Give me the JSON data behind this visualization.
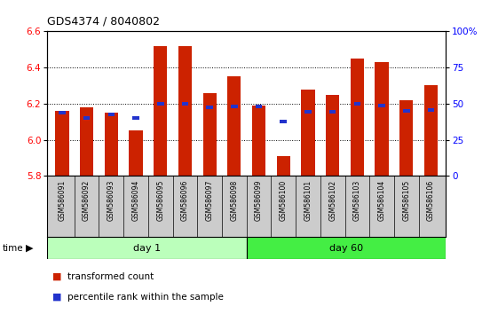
{
  "title": "GDS4374 / 8040802",
  "samples": [
    "GSM586091",
    "GSM586092",
    "GSM586093",
    "GSM586094",
    "GSM586095",
    "GSM586096",
    "GSM586097",
    "GSM586098",
    "GSM586099",
    "GSM586100",
    "GSM586101",
    "GSM586102",
    "GSM586103",
    "GSM586104",
    "GSM586105",
    "GSM586106"
  ],
  "red_values": [
    6.16,
    6.18,
    6.15,
    6.05,
    6.52,
    6.52,
    6.26,
    6.35,
    6.19,
    5.91,
    6.28,
    6.25,
    6.45,
    6.43,
    6.22,
    6.3
  ],
  "blue_values": [
    6.15,
    6.12,
    6.14,
    6.12,
    6.2,
    6.2,
    6.18,
    6.185,
    6.185,
    6.1,
    6.155,
    6.155,
    6.2,
    6.19,
    6.16,
    6.165
  ],
  "ylim_left": [
    5.8,
    6.6
  ],
  "ylim_right": [
    0,
    100
  ],
  "ybase": 5.8,
  "yticks_left": [
    5.8,
    6.0,
    6.2,
    6.4,
    6.6
  ],
  "yticks_right": [
    0,
    25,
    50,
    75,
    100
  ],
  "groups": [
    {
      "label": "day 1",
      "start": 0,
      "end": 8,
      "color": "#bbffbb"
    },
    {
      "label": "day 60",
      "start": 8,
      "end": 16,
      "color": "#44ee44"
    }
  ],
  "bar_color": "#cc2200",
  "blue_color": "#2233cc",
  "background_color": "#ffffff",
  "plot_bg": "#ffffff",
  "sample_bg": "#cccccc",
  "grid_color": "#000000",
  "legend_items": [
    {
      "color": "#cc2200",
      "label": "transformed count"
    },
    {
      "color": "#2233cc",
      "label": "percentile rank within the sample"
    }
  ]
}
